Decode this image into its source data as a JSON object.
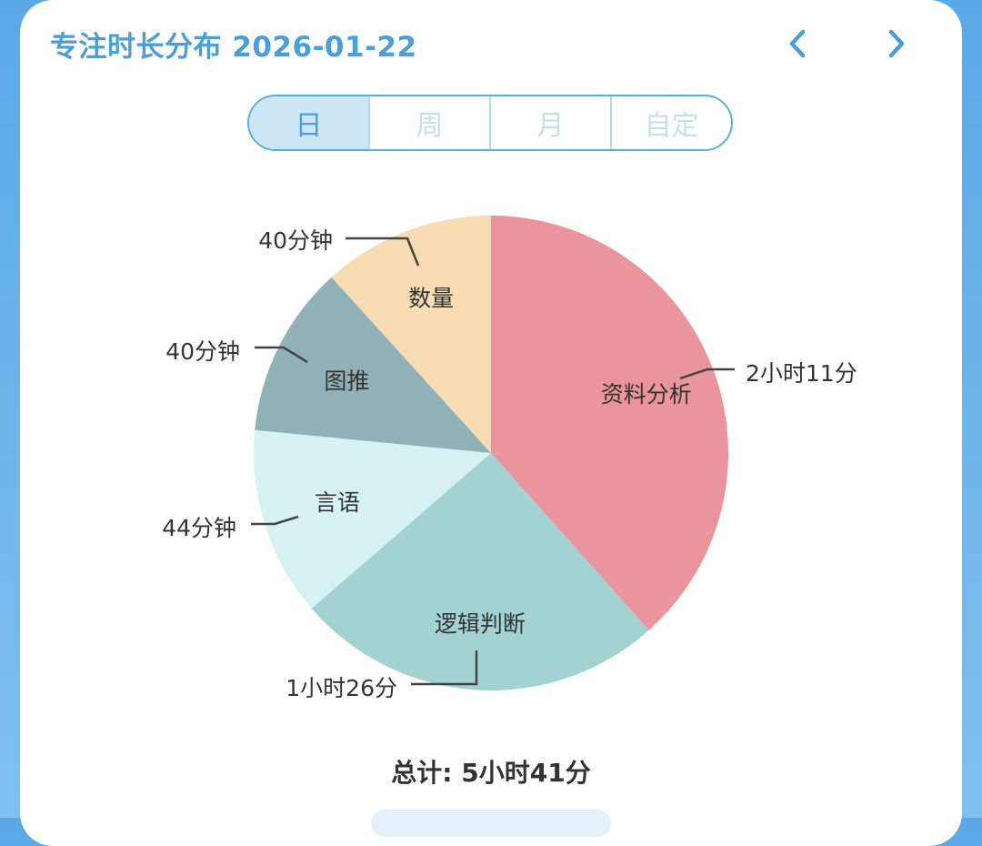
{
  "header": {
    "title": "专注时长分布 2026-01-22"
  },
  "tabs": [
    {
      "label": "日",
      "active": true
    },
    {
      "label": "周",
      "active": false
    },
    {
      "label": "月",
      "active": false
    },
    {
      "label": "自定",
      "active": false
    }
  ],
  "total_label": "总计: 5小时41分",
  "colors": {
    "accent": "#4a9fd8",
    "slice_资料分析": "#ea959e",
    "slice_逻辑判断": "#a3d2d3",
    "slice_言语": "#d7f2f3",
    "slice_图推": "#8fb1b7",
    "slice_数量": "#f7dcb4"
  },
  "chart_data": {
    "type": "pie",
    "title": "",
    "unit": "分钟",
    "slices": [
      {
        "name": "资料分析",
        "value": 131,
        "label": "2小时11分",
        "color": "#ea959e"
      },
      {
        "name": "逻辑判断",
        "value": 86,
        "label": "1小时26分",
        "color": "#a3d2d3"
      },
      {
        "name": "言语",
        "value": 44,
        "label": "44分钟",
        "color": "#d7f2f3"
      },
      {
        "name": "图推",
        "value": 40,
        "label": "40分钟",
        "color": "#8fb1b7"
      },
      {
        "name": "数量",
        "value": 40,
        "label": "40分钟",
        "color": "#f7dcb4"
      }
    ]
  }
}
